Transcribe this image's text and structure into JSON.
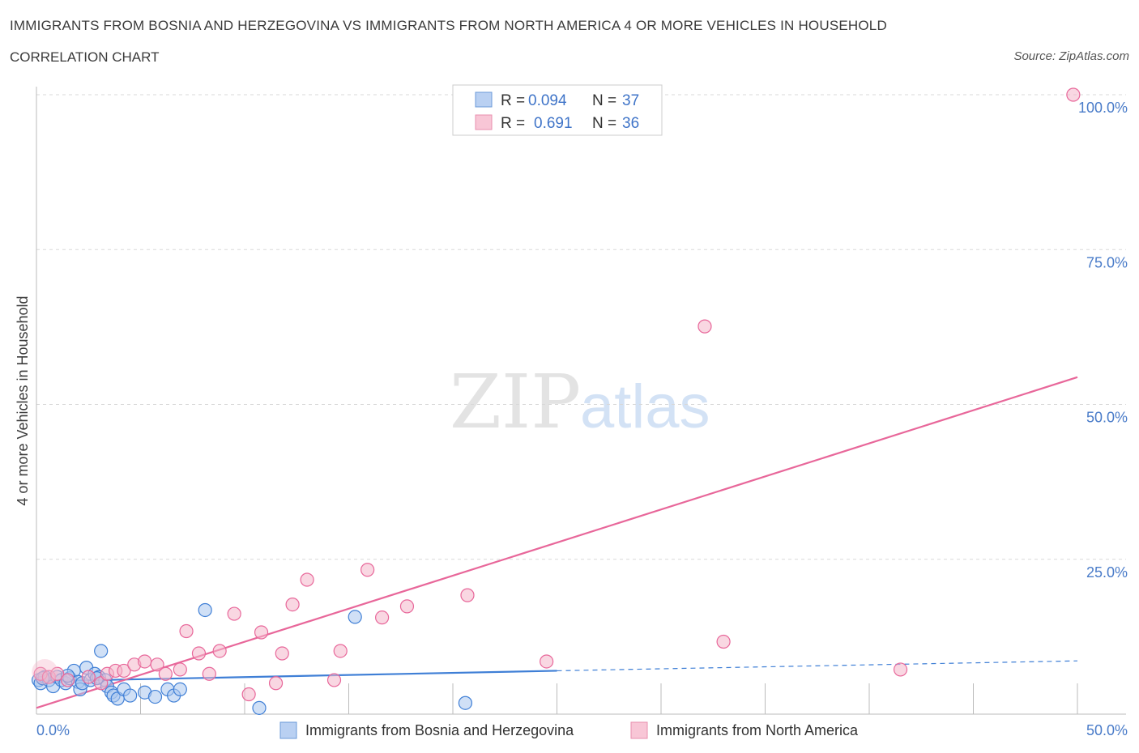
{
  "title": "IMMIGRANTS FROM BOSNIA AND HERZEGOVINA VS IMMIGRANTS FROM NORTH AMERICA 4 OR MORE VEHICLES IN HOUSEHOLD",
  "subtitle": "CORRELATION CHART",
  "source": "Source: ZipAtlas.com",
  "watermark": {
    "zip": "ZIP",
    "atlas": "atlas"
  },
  "colors": {
    "blue": "#3f7fd6",
    "blue_fill": "#a9c6ef",
    "pink": "#e8679a",
    "pink_fill": "#f4b6cb",
    "grid": "#d8d8d8",
    "tick": "#4a7cc9"
  },
  "legend": {
    "r_label": "R =",
    "n_label": "N =",
    "entries": [
      {
        "r": "0.094",
        "n": "37"
      },
      {
        "r": "0.691",
        "n": "36"
      }
    ]
  },
  "chart_data": {
    "type": "scatter",
    "title": "IMMIGRANTS FROM BOSNIA AND HERZEGOVINA VS IMMIGRANTS FROM NORTH AMERICA 4 OR MORE VEHICLES IN HOUSEHOLD",
    "xlabel": "",
    "ylabel": "4 or more Vehicles in Household",
    "xlim": [
      0,
      50
    ],
    "ylim": [
      0,
      100
    ],
    "x_tick_labels": [
      "0.0%",
      "50.0%"
    ],
    "y_tick_labels": [
      {
        "value": 25,
        "label": "25.0%"
      },
      {
        "value": 50,
        "label": "50.0%"
      },
      {
        "value": 75,
        "label": "75.0%"
      },
      {
        "value": 100,
        "label": "100.0%"
      }
    ],
    "series": [
      {
        "name": "Immigrants from Bosnia and Herzegovina",
        "color": "blue",
        "points": [
          [
            0.1,
            5.5
          ],
          [
            0.2,
            5.0
          ],
          [
            0.4,
            6.0
          ],
          [
            0.6,
            5.5
          ],
          [
            0.8,
            4.5
          ],
          [
            1.0,
            6.0
          ],
          [
            1.2,
            5.5
          ],
          [
            1.4,
            5.0
          ],
          [
            1.6,
            5.8
          ],
          [
            1.8,
            7.0
          ],
          [
            2.0,
            5.2
          ],
          [
            2.1,
            4.0
          ],
          [
            2.2,
            5.0
          ],
          [
            2.4,
            7.5
          ],
          [
            2.6,
            5.5
          ],
          [
            2.8,
            6.5
          ],
          [
            3.0,
            6.0
          ],
          [
            3.1,
            10.2
          ],
          [
            3.3,
            5.5
          ],
          [
            3.4,
            4.5
          ],
          [
            3.6,
            3.5
          ],
          [
            3.7,
            3.0
          ],
          [
            3.9,
            2.5
          ],
          [
            4.2,
            4.0
          ],
          [
            4.5,
            3.0
          ],
          [
            5.2,
            3.5
          ],
          [
            5.7,
            2.8
          ],
          [
            6.3,
            4.0
          ],
          [
            6.6,
            3.0
          ],
          [
            6.9,
            4.0
          ],
          [
            8.1,
            16.8
          ],
          [
            10.7,
            1.0
          ],
          [
            15.3,
            15.7
          ],
          [
            20.6,
            1.8
          ],
          [
            0.3,
            5.8
          ],
          [
            1.5,
            6.2
          ],
          [
            2.9,
            5.8
          ]
        ],
        "trend": {
          "x": [
            0,
            25
          ],
          "y": [
            5.3,
            7.0
          ],
          "dashed_x": [
            25,
            50
          ],
          "dashed_y": [
            7.0,
            8.6
          ]
        }
      },
      {
        "name": "Immigrants from North America",
        "color": "pink",
        "points": [
          [
            0.2,
            6.5
          ],
          [
            0.6,
            6.0
          ],
          [
            1.0,
            6.5
          ],
          [
            1.5,
            5.5
          ],
          [
            2.5,
            6.0
          ],
          [
            3.1,
            5.0
          ],
          [
            3.4,
            6.5
          ],
          [
            3.8,
            7.0
          ],
          [
            4.2,
            7.0
          ],
          [
            4.7,
            8.0
          ],
          [
            5.2,
            8.5
          ],
          [
            5.8,
            8.0
          ],
          [
            6.2,
            6.5
          ],
          [
            6.9,
            7.2
          ],
          [
            7.2,
            13.4
          ],
          [
            7.8,
            9.8
          ],
          [
            8.3,
            6.5
          ],
          [
            8.8,
            10.2
          ],
          [
            9.5,
            16.2
          ],
          [
            10.2,
            3.2
          ],
          [
            10.8,
            13.2
          ],
          [
            11.5,
            5.0
          ],
          [
            11.8,
            9.8
          ],
          [
            12.3,
            17.7
          ],
          [
            13.0,
            21.7
          ],
          [
            14.3,
            5.5
          ],
          [
            14.6,
            10.2
          ],
          [
            15.9,
            23.3
          ],
          [
            16.6,
            15.6
          ],
          [
            17.8,
            17.4
          ],
          [
            20.7,
            19.2
          ],
          [
            24.5,
            8.5
          ],
          [
            32.1,
            62.6
          ],
          [
            33.0,
            11.7
          ],
          [
            41.5,
            7.2
          ],
          [
            49.8,
            100.0
          ]
        ],
        "trend": {
          "x": [
            0,
            50
          ],
          "y": [
            1.0,
            54.4
          ]
        }
      }
    ]
  }
}
